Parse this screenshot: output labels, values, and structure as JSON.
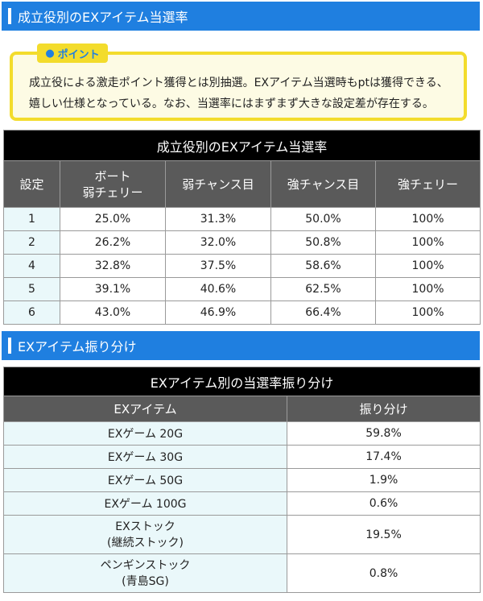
{
  "section1": {
    "title": "成立役別のEXアイテム当選率"
  },
  "point": {
    "tag": "ポイント",
    "text_line1": "成立役による激走ポイント獲得とは別抽選。EXアイテム当選時もptは獲得できる、",
    "text_line2": "嬉しい仕様となっている。なお、当選率にはまずまず大きな設定差が存在する。"
  },
  "table1": {
    "title": "成立役別のEXアイテム当選率",
    "headers": [
      "設定",
      "ボート",
      "弱チェリー",
      "弱チャンス目",
      "強チャンス目",
      "強チェリー"
    ],
    "rows": [
      [
        "1",
        "25.0%",
        "31.3%",
        "50.0%",
        "100%"
      ],
      [
        "2",
        "26.2%",
        "32.0%",
        "50.8%",
        "100%"
      ],
      [
        "4",
        "32.8%",
        "37.5%",
        "58.6%",
        "100%"
      ],
      [
        "5",
        "39.1%",
        "40.6%",
        "62.5%",
        "100%"
      ],
      [
        "6",
        "43.0%",
        "46.9%",
        "66.4%",
        "100%"
      ]
    ]
  },
  "section2": {
    "title": "EXアイテム振り分け"
  },
  "table2": {
    "title": "EXアイテム別の当選率振り分け",
    "headers": [
      "EXアイテム",
      "振り分け"
    ],
    "rows": [
      [
        "EXゲーム 20G",
        "",
        "59.8%"
      ],
      [
        "EXゲーム 30G",
        "",
        "17.4%"
      ],
      [
        "EXゲーム 50G",
        "",
        "1.9%"
      ],
      [
        "EXゲーム 100G",
        "",
        "0.6%"
      ],
      [
        "EXストック",
        "(継続ストック)",
        "19.5%"
      ],
      [
        "ペンギンストック",
        "(青島SG)",
        "0.8%"
      ]
    ]
  },
  "colors": {
    "accent": "#1f7fe0",
    "point_border": "#f3dc2c",
    "row_label_bg": "#eaf8fa"
  }
}
